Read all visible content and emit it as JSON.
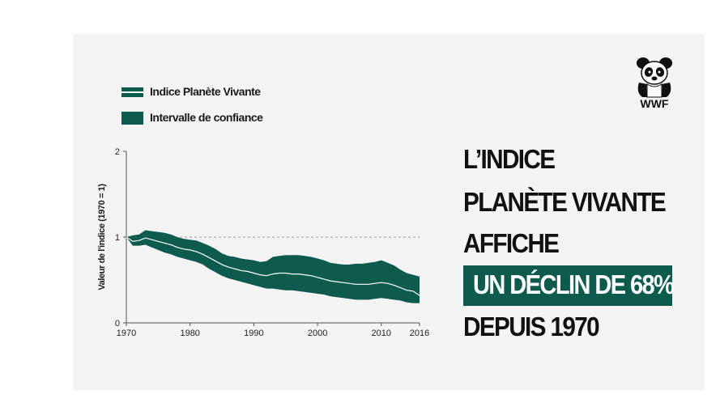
{
  "legend": {
    "index_label": "Indice Planète Vivante",
    "ci_label": "Intervalle de confiance"
  },
  "logo": {
    "text": "WWF"
  },
  "headline": {
    "line1": "L’INDICE",
    "line2": "PLANÈTE VIVANTE",
    "line3": "AFFICHE",
    "highlight": "UN DÉCLIN DE 68%",
    "line5": "DEPUIS 1970"
  },
  "colors": {
    "band": "#0d5b4d",
    "line": "#ffffff",
    "axis": "#555555",
    "reference": "#999999"
  },
  "chart_data": {
    "type": "area",
    "ylabel": "Valeur de l'indice (1970 = 1)",
    "xlim": [
      1970,
      2016
    ],
    "ylim": [
      0,
      2
    ],
    "xticks": [
      "1970",
      "1980",
      "1990",
      "2000",
      "2010",
      "2016"
    ],
    "yticks": [
      "0",
      "1",
      "2"
    ],
    "reference_line": 1,
    "x": [
      1970,
      1971,
      1972,
      1973,
      1974,
      1975,
      1976,
      1977,
      1978,
      1979,
      1980,
      1981,
      1982,
      1983,
      1984,
      1985,
      1986,
      1987,
      1988,
      1989,
      1990,
      1991,
      1992,
      1993,
      1994,
      1995,
      1996,
      1997,
      1998,
      1999,
      2000,
      2001,
      2002,
      2003,
      2004,
      2005,
      2006,
      2007,
      2008,
      2009,
      2010,
      2011,
      2012,
      2013,
      2014,
      2015,
      2016
    ],
    "series": [
      {
        "name": "Indice Planète Vivante",
        "values": [
          1.0,
          0.95,
          0.96,
          0.99,
          0.97,
          0.95,
          0.93,
          0.91,
          0.88,
          0.86,
          0.85,
          0.83,
          0.8,
          0.76,
          0.72,
          0.68,
          0.65,
          0.63,
          0.61,
          0.6,
          0.58,
          0.56,
          0.55,
          0.57,
          0.58,
          0.58,
          0.57,
          0.57,
          0.56,
          0.55,
          0.53,
          0.51,
          0.49,
          0.48,
          0.47,
          0.46,
          0.45,
          0.45,
          0.45,
          0.46,
          0.47,
          0.46,
          0.44,
          0.41,
          0.38,
          0.37,
          0.32
        ]
      },
      {
        "name": "Intervalle de confiance (max)",
        "values": [
          1.0,
          1.02,
          1.03,
          1.08,
          1.07,
          1.06,
          1.05,
          1.03,
          1.0,
          0.98,
          0.97,
          0.96,
          0.93,
          0.9,
          0.86,
          0.81,
          0.78,
          0.77,
          0.75,
          0.74,
          0.73,
          0.71,
          0.72,
          0.77,
          0.78,
          0.79,
          0.79,
          0.79,
          0.78,
          0.77,
          0.75,
          0.73,
          0.7,
          0.69,
          0.68,
          0.68,
          0.69,
          0.69,
          0.7,
          0.71,
          0.73,
          0.7,
          0.67,
          0.62,
          0.58,
          0.56,
          0.54
        ]
      },
      {
        "name": "Intervalle de confiance (min)",
        "values": [
          1.0,
          0.9,
          0.9,
          0.91,
          0.88,
          0.85,
          0.82,
          0.8,
          0.77,
          0.75,
          0.73,
          0.71,
          0.68,
          0.63,
          0.59,
          0.55,
          0.52,
          0.5,
          0.48,
          0.46,
          0.44,
          0.42,
          0.4,
          0.4,
          0.39,
          0.38,
          0.38,
          0.37,
          0.36,
          0.35,
          0.34,
          0.33,
          0.31,
          0.3,
          0.29,
          0.28,
          0.27,
          0.27,
          0.27,
          0.28,
          0.29,
          0.28,
          0.27,
          0.26,
          0.24,
          0.23,
          0.23
        ]
      }
    ]
  }
}
